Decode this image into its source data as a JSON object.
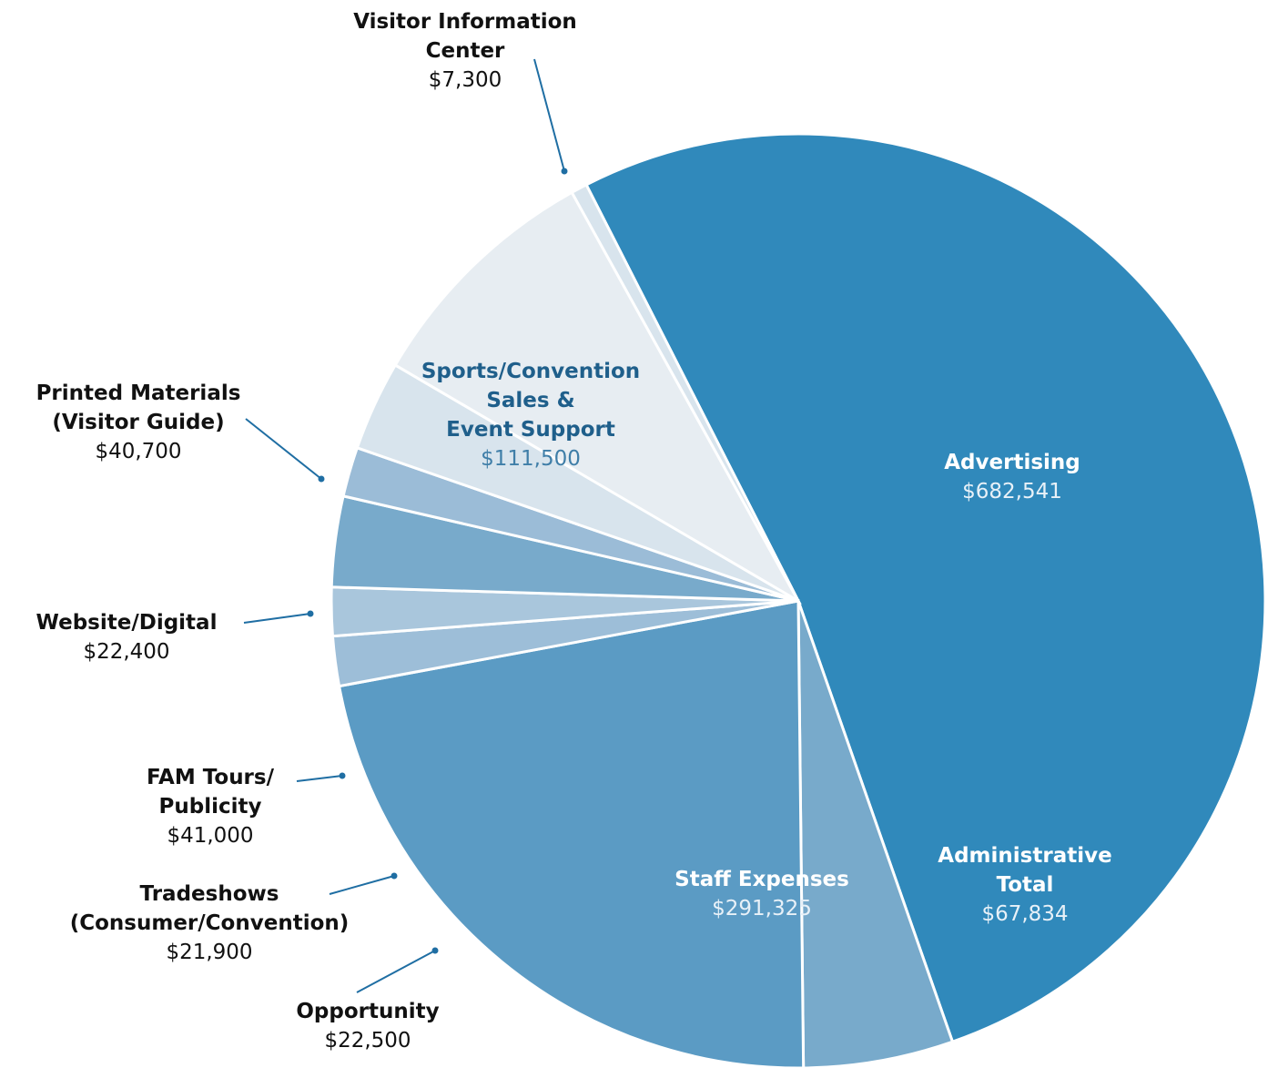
{
  "chart_data": {
    "type": "pie",
    "categories": [
      "Advertising",
      "Administrative\nTotal",
      "Staff Expenses",
      "Opportunity",
      "Tradeshows\n(Consumer/Convention)",
      "FAM Tours/\nPublicity",
      "Website/Digital",
      "Printed Materials\n(Visitor Guide)",
      "Sports/Convention\nSales &\nEvent Support",
      "Visitor Information\nCenter"
    ],
    "values": [
      682541,
      67834,
      291325,
      22500,
      21900,
      41000,
      22400,
      40700,
      111500,
      7300
    ],
    "value_labels": [
      "$682,541",
      "$67,834",
      "$291,325",
      "$22,500",
      "$21,900",
      "$41,000",
      "$22,400",
      "$40,700",
      "$111,500",
      "$7,300"
    ],
    "colors": [
      "#3089bb",
      "#78aacb",
      "#5b9bc4",
      "#9dbed8",
      "#a9c6dc",
      "#78aacb",
      "#9bbcd7",
      "#d8e4ed",
      "#e7edf2",
      "#d8e4ed"
    ]
  }
}
